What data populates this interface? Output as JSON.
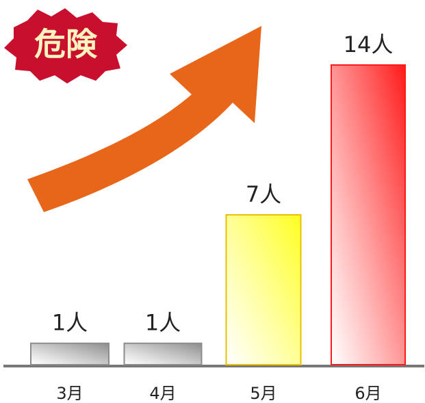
{
  "chart_data": {
    "type": "bar",
    "badge": "危険",
    "categories": [
      "3月",
      "4月",
      "5月",
      "6月"
    ],
    "values": [
      1,
      1,
      7,
      14
    ],
    "value_labels": [
      "1人",
      "1人",
      "7人",
      "14人"
    ],
    "colors": [
      "#8c8c8c",
      "#8c8c8c",
      "#ffff20",
      "#ff1a1a"
    ]
  }
}
